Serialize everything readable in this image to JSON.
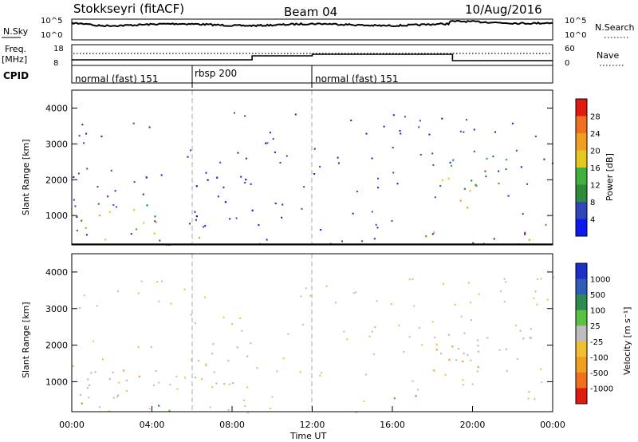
{
  "header": {
    "station": "Stokkseyri (fitACF)",
    "beam": "Beam 04",
    "date": "10/Aug/2016"
  },
  "top_panels": {
    "nsky": {
      "label": "N.Sky",
      "ticks_left": [
        "10^5",
        "10^0"
      ],
      "ticks_right": [
        "10^5",
        "10^0"
      ],
      "right_label": "N.Search"
    },
    "freq": {
      "label_line1": "Freq.",
      "label_line2": "[MHz]",
      "ticks_left": [
        "18",
        "8"
      ],
      "ticks_right": [
        "60",
        "0"
      ],
      "right_label": "Nave"
    },
    "cpid": {
      "label": "CPID",
      "segments": [
        {
          "name": "normal (fast) 151",
          "start": 0,
          "end": 6
        },
        {
          "name": "rbsp 200",
          "start": 6,
          "end": 12
        },
        {
          "name": "normal (fast) 151",
          "start": 12,
          "end": 24
        }
      ]
    }
  },
  "chart_data": [
    {
      "type": "heatmap",
      "name_hint": "power",
      "ylabel": "Slant Range [km]",
      "y_ticks": [
        "1000",
        "2000",
        "3000",
        "4000"
      ],
      "ylim": [
        180,
        4500
      ],
      "xlim": [
        0,
        24
      ],
      "colorbar": {
        "label": "Power [dB]",
        "ticks": [
          "4",
          "8",
          "12",
          "16",
          "20",
          "24",
          "28"
        ],
        "range": [
          0,
          32
        ],
        "colors": [
          "#0a1af0",
          "#2e46b8",
          "#2f8a3a",
          "#40b040",
          "#e6c820",
          "#f0a020",
          "#f07020",
          "#e01a10"
        ]
      },
      "regions": [
        {
          "t": [
            0.2,
            5.5
          ],
          "r": [
            200,
            420
          ],
          "level": "high"
        },
        {
          "t": [
            1.5,
            4.2
          ],
          "r": [
            250,
            500
          ],
          "level": "max"
        },
        {
          "t": [
            0.3,
            5.0
          ],
          "r": [
            420,
            1400
          ],
          "level": "mid"
        },
        {
          "t": [
            0.5,
            2.0
          ],
          "r": [
            3000,
            3500
          ],
          "level": "low"
        },
        {
          "t": [
            6.0,
            9.0
          ],
          "r": [
            900,
            2200
          ],
          "level": "low"
        },
        {
          "t": [
            5.2,
            6.5
          ],
          "r": [
            200,
            450
          ],
          "level": "mid"
        },
        {
          "t": [
            15.5,
            18.5
          ],
          "r": [
            350,
            650
          ],
          "level": "high"
        },
        {
          "t": [
            17.5,
            23.0
          ],
          "r": [
            1800,
            2800
          ],
          "level": "lowmid"
        },
        {
          "t": [
            18.0,
            20.5
          ],
          "r": [
            1200,
            2200
          ],
          "level": "mid"
        },
        {
          "t": [
            22.5,
            24.0
          ],
          "r": [
            200,
            800
          ],
          "level": "high"
        }
      ]
    },
    {
      "type": "heatmap",
      "name_hint": "velocity",
      "ylabel": "Slant Range [km]",
      "y_ticks": [
        "1000",
        "2000",
        "3000",
        "4000"
      ],
      "ylim": [
        180,
        4500
      ],
      "xlim": [
        0,
        24
      ],
      "x_ticks": [
        "00:00",
        "04:00",
        "08:00",
        "12:00",
        "16:00",
        "20:00",
        "00:00"
      ],
      "xlabel": "Time UT",
      "colorbar": {
        "label": "Velocity [m s⁻¹]",
        "ticks": [
          "1000",
          "500",
          "100",
          "25",
          "-25",
          "-100",
          "-500",
          "-1000"
        ],
        "colors": [
          "#1a30c8",
          "#2e5cb8",
          "#2f8a50",
          "#5cc040",
          "#bdbdbd",
          "#f0c030",
          "#f0a020",
          "#f07020",
          "#e01a10"
        ]
      },
      "regions": [
        {
          "t": [
            0.2,
            5.5
          ],
          "r": [
            200,
            450
          ],
          "level": "green"
        },
        {
          "t": [
            0.3,
            5.0
          ],
          "r": [
            450,
            1400
          ],
          "level": "gray"
        },
        {
          "t": [
            2.5,
            3.5
          ],
          "r": [
            1000,
            1400
          ],
          "level": "orange"
        },
        {
          "t": [
            6.0,
            9.0
          ],
          "r": [
            900,
            2200
          ],
          "level": "gray"
        },
        {
          "t": [
            15.5,
            18.5
          ],
          "r": [
            350,
            650
          ],
          "level": "orange"
        },
        {
          "t": [
            17.5,
            23.0
          ],
          "r": [
            1800,
            2800
          ],
          "level": "gray"
        },
        {
          "t": [
            18.0,
            20.5
          ],
          "r": [
            1200,
            2200
          ],
          "level": "grayorange"
        },
        {
          "t": [
            22.5,
            24.0
          ],
          "r": [
            200,
            800
          ],
          "level": "gray"
        }
      ]
    }
  ]
}
